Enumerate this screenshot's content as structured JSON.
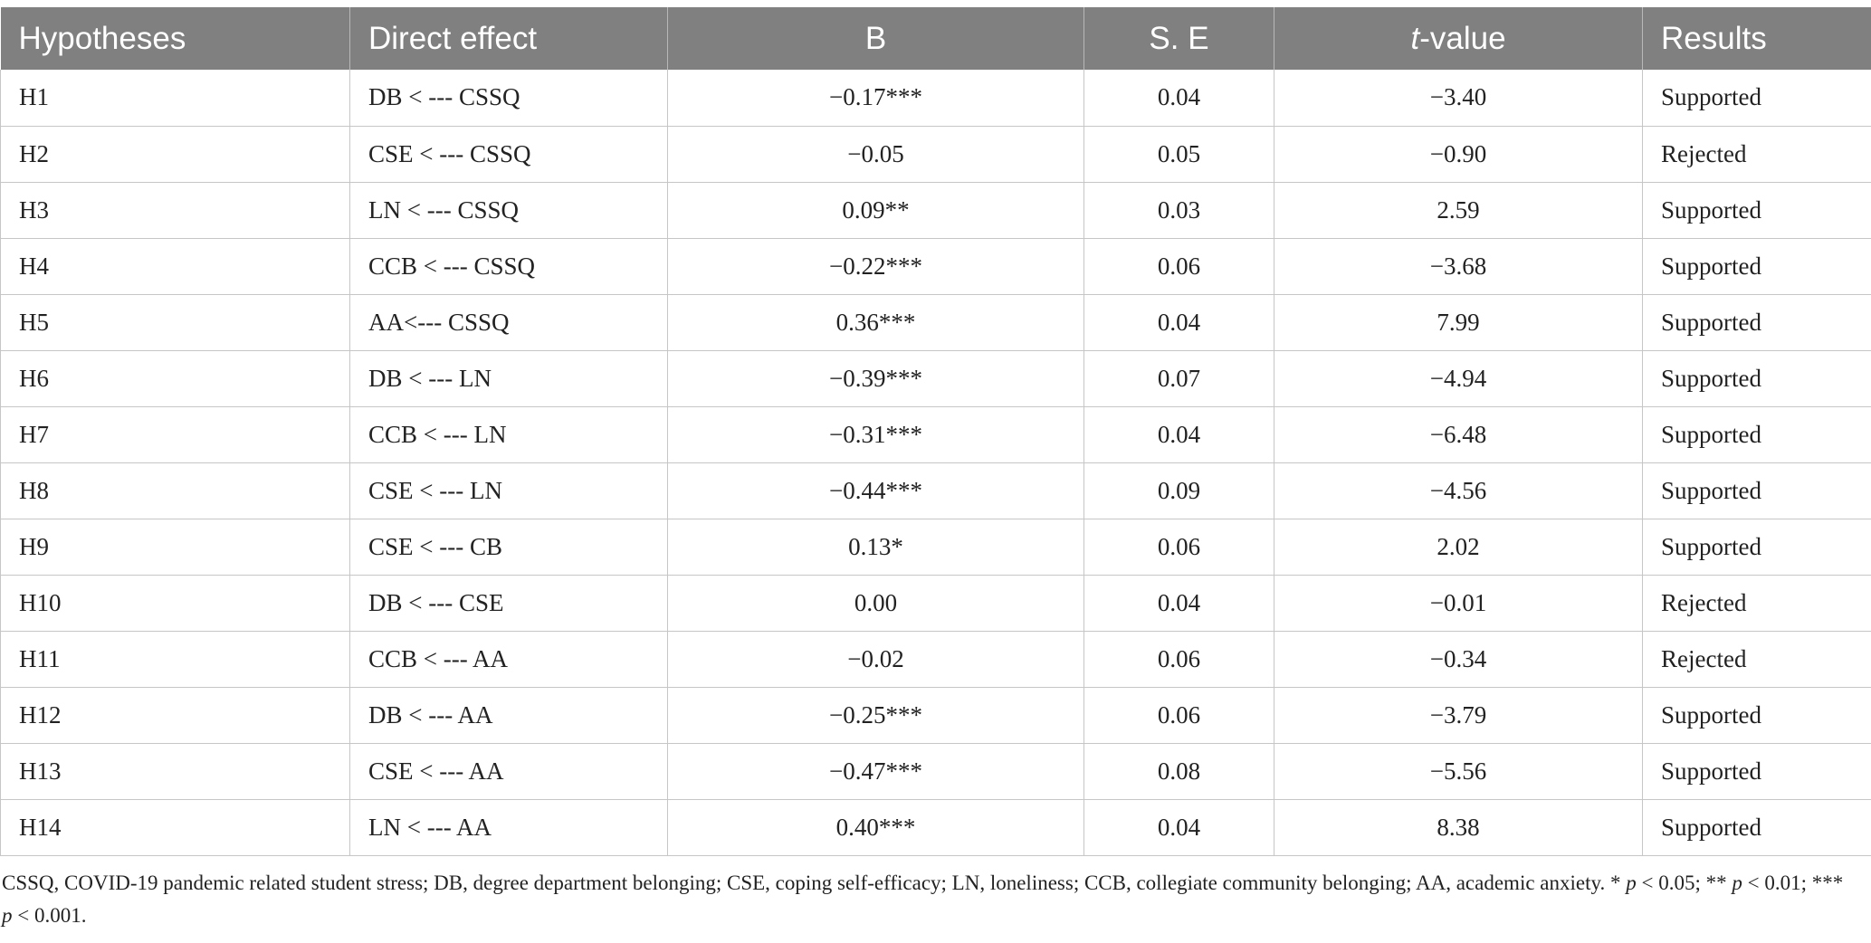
{
  "table": {
    "headers": {
      "hypotheses": "Hypotheses",
      "direct_effect": "Direct effect",
      "b": "B",
      "se": "S. E",
      "t_italic": "t",
      "t_rest": "-value",
      "results": "Results"
    },
    "rows": [
      {
        "h": "H1",
        "effect": "DB < --- CSSQ",
        "b": "−0.17***",
        "se": "0.04",
        "t": "−3.40",
        "result": "Supported"
      },
      {
        "h": "H2",
        "effect": "CSE < --- CSSQ",
        "b": "−0.05",
        "se": "0.05",
        "t": "−0.90",
        "result": "Rejected"
      },
      {
        "h": "H3",
        "effect": "LN < --- CSSQ",
        "b": "0.09**",
        "se": "0.03",
        "t": "2.59",
        "result": "Supported"
      },
      {
        "h": "H4",
        "effect": "CCB < --- CSSQ",
        "b": "−0.22***",
        "se": "0.06",
        "t": "−3.68",
        "result": "Supported"
      },
      {
        "h": "H5",
        "effect": "AA<--- CSSQ",
        "b": "0.36***",
        "se": "0.04",
        "t": "7.99",
        "result": "Supported"
      },
      {
        "h": "H6",
        "effect": "DB < --- LN",
        "b": "−0.39***",
        "se": "0.07",
        "t": "−4.94",
        "result": "Supported"
      },
      {
        "h": "H7",
        "effect": "CCB < --- LN",
        "b": "−0.31***",
        "se": "0.04",
        "t": "−6.48",
        "result": "Supported"
      },
      {
        "h": "H8",
        "effect": "CSE < --- LN",
        "b": "−0.44***",
        "se": "0.09",
        "t": "−4.56",
        "result": "Supported"
      },
      {
        "h": "H9",
        "effect": "CSE < --- CB",
        "b": "0.13*",
        "se": "0.06",
        "t": "2.02",
        "result": "Supported"
      },
      {
        "h": "H10",
        "effect": "DB < --- CSE",
        "b": "0.00",
        "se": "0.04",
        "t": "−0.01",
        "result": "Rejected"
      },
      {
        "h": "H11",
        "effect": "CCB < --- AA",
        "b": "−0.02",
        "se": "0.06",
        "t": "−0.34",
        "result": "Rejected"
      },
      {
        "h": "H12",
        "effect": "DB < --- AA",
        "b": "−0.25***",
        "se": "0.06",
        "t": "−3.79",
        "result": "Supported"
      },
      {
        "h": "H13",
        "effect": "CSE < --- AA",
        "b": "−0.47***",
        "se": "0.08",
        "t": "−5.56",
        "result": "Supported"
      },
      {
        "h": "H14",
        "effect": "LN < --- AA",
        "b": "0.40***",
        "se": "0.04",
        "t": "8.38",
        "result": "Supported"
      }
    ]
  },
  "footnote": {
    "abbreviations": "CSSQ, COVID-19 pandemic related student stress; DB, degree department belonging; CSE, coping self-efficacy; LN, loneliness; CCB, collegiate community belonging; AA, academic anxiety. * ",
    "p": "p",
    "sig1": " < 0.05; ** ",
    "sig2": " < 0.01; *** ",
    "sig3": " < 0.001."
  },
  "colors": {
    "header_background": "#808080",
    "header_text": "#ffffff",
    "grid_lines": "#c6c6c6",
    "body_text": "#222222"
  }
}
